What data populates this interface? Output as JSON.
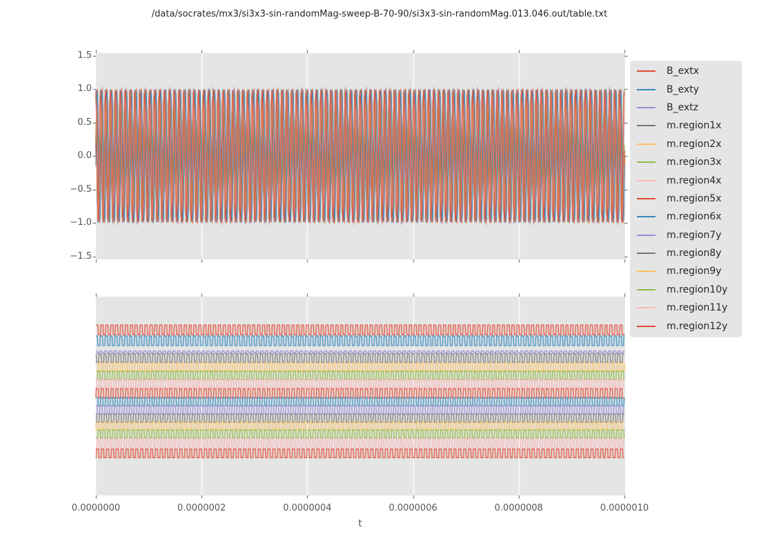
{
  "figure": {
    "title": "/data/socrates/mx3/si3x3-sin-randomMag-sweep-B-70-90/si3x3-sin-randomMag.013.046.out/table.txt",
    "xlabel": "t",
    "colors": {
      "figure_bg": "#ffffff",
      "axes_bg": "#e5e5e5",
      "grid": "#ffffff",
      "tick": "#555555",
      "text": "#262626",
      "tick_label": "#555555"
    }
  },
  "legend": {
    "entries": [
      {
        "label": "B_extx",
        "color": "#e24a33"
      },
      {
        "label": "B_exty",
        "color": "#348abd"
      },
      {
        "label": "B_extz",
        "color": "#988ed5"
      },
      {
        "label": "m.region1x",
        "color": "#777777"
      },
      {
        "label": "m.region2x",
        "color": "#fbc15e"
      },
      {
        "label": "m.region3x",
        "color": "#8eba42"
      },
      {
        "label": "m.region4x",
        "color": "#ffb5b8"
      },
      {
        "label": "m.region5x",
        "color": "#e24a33"
      },
      {
        "label": "m.region6x",
        "color": "#348abd"
      },
      {
        "label": "m.region7y",
        "color": "#988ed5"
      },
      {
        "label": "m.region8y",
        "color": "#777777"
      },
      {
        "label": "m.region9y",
        "color": "#fbc15e"
      },
      {
        "label": "m.region10y",
        "color": "#8eba42"
      },
      {
        "label": "m.region11y",
        "color": "#ffb5b8"
      },
      {
        "label": "m.region12y",
        "color": "#e24a33"
      }
    ]
  },
  "chart_data": [
    {
      "type": "line",
      "subplot": "top",
      "waveform": "sine",
      "x": {
        "label": "t",
        "min": 0,
        "max": 1e-06,
        "ticks": [
          0,
          2e-07,
          4e-07,
          6e-07,
          8e-07,
          1e-06
        ],
        "tick_labels": []
      },
      "y": {
        "min": -1.55,
        "max": 1.55,
        "ticks": [
          1.5,
          1.0,
          0.5,
          0.0,
          -0.5,
          -1.0,
          -1.5
        ],
        "tick_labels": [
          "1.5",
          "1.0",
          "0.5",
          "0.0",
          "−0.5",
          "−1.0",
          "−1.5"
        ]
      },
      "grid": "vertical-only",
      "cycles_visible": 108,
      "series": [
        {
          "name": "B_extx",
          "color": "#e24a33",
          "amplitude": 1.0,
          "phase": 0.0
        },
        {
          "name": "B_exty",
          "color": "#348abd",
          "amplitude": 1.0,
          "phase": 1.75
        },
        {
          "name": "B_extz",
          "color": "#988ed5",
          "amplitude": 0.02,
          "phase": 0.0
        },
        {
          "name": "m.region1x",
          "color": "#777777",
          "amplitude": 0.95,
          "phase": 0.1
        },
        {
          "name": "m.region2x",
          "color": "#fbc15e",
          "amplitude": 0.97,
          "phase": -0.12
        },
        {
          "name": "m.region3x",
          "color": "#8eba42",
          "amplitude": 0.94,
          "phase": 0.18
        },
        {
          "name": "m.region4x",
          "color": "#ffb5b8",
          "amplitude": 0.96,
          "phase": -0.2
        },
        {
          "name": "m.region5x",
          "color": "#e24a33",
          "amplitude": 0.98,
          "phase": 0.08
        },
        {
          "name": "m.region6x",
          "color": "#348abd",
          "amplitude": 0.97,
          "phase": -0.15
        },
        {
          "name": "m.region7y",
          "color": "#988ed5",
          "amplitude": 0.95,
          "phase": 1.6
        },
        {
          "name": "m.region8y",
          "color": "#777777",
          "amplitude": 0.96,
          "phase": 1.9
        },
        {
          "name": "m.region9y",
          "color": "#fbc15e",
          "amplitude": 0.94,
          "phase": 1.68
        },
        {
          "name": "m.region10y",
          "color": "#8eba42",
          "amplitude": 0.97,
          "phase": 1.82
        },
        {
          "name": "m.region11y",
          "color": "#ffb5b8",
          "amplitude": 0.95,
          "phase": 1.58
        },
        {
          "name": "m.region12y",
          "color": "#e24a33",
          "amplitude": 0.98,
          "phase": 1.75
        }
      ]
    },
    {
      "type": "line",
      "subplot": "bottom",
      "waveform": "square",
      "x": {
        "label": "t",
        "min": 0,
        "max": 1e-06,
        "ticks": [
          0,
          2e-07,
          4e-07,
          6e-07,
          8e-07,
          1e-06
        ],
        "tick_labels": [
          "0.0000000",
          "0.0000002",
          "0.0000004",
          "0.0000006",
          "0.0000008",
          "0.0000010"
        ]
      },
      "y": {
        "ticks": [],
        "tick_labels": []
      },
      "grid": "vertical-only",
      "cycles_visible": 108,
      "series": [
        {
          "name": "B_extx",
          "color": "#e24a33",
          "center_frac": 0.167,
          "amp_frac": 0.024,
          "phase": 0.0
        },
        {
          "name": "B_exty",
          "color": "#348abd",
          "center_frac": 0.222,
          "amp_frac": 0.024,
          "phase": 0.85
        },
        {
          "name": "B_extz",
          "color": "#988ed5",
          "center_frac": 0.278,
          "amp_frac": 0.005,
          "phase": 1.7
        },
        {
          "name": "m.region1x",
          "color": "#777777",
          "center_frac": 0.309,
          "amp_frac": 0.021,
          "phase": 2.55
        },
        {
          "name": "m.region2x",
          "color": "#fbc15e",
          "center_frac": 0.354,
          "amp_frac": 0.021,
          "phase": 3.4
        },
        {
          "name": "m.region3x",
          "color": "#8eba42",
          "center_frac": 0.396,
          "amp_frac": 0.021,
          "phase": 4.25
        },
        {
          "name": "m.region4x",
          "color": "#ffb5b8",
          "center_frac": 0.4375,
          "amp_frac": 0.022,
          "phase": 5.1
        },
        {
          "name": "m.region5x",
          "color": "#e24a33",
          "center_frac": 0.486,
          "amp_frac": 0.023,
          "phase": 5.95
        },
        {
          "name": "m.region6x",
          "color": "#348abd",
          "center_frac": 0.528,
          "amp_frac": 0.02,
          "phase": 0.4
        },
        {
          "name": "m.region7y",
          "color": "#988ed5",
          "center_frac": 0.569,
          "amp_frac": 0.02,
          "phase": 1.25
        },
        {
          "name": "m.region8y",
          "color": "#777777",
          "center_frac": 0.611,
          "amp_frac": 0.02,
          "phase": 2.1
        },
        {
          "name": "m.region9y",
          "color": "#fbc15e",
          "center_frac": 0.649,
          "amp_frac": 0.02,
          "phase": 2.95
        },
        {
          "name": "m.region10y",
          "color": "#8eba42",
          "center_frac": 0.691,
          "amp_frac": 0.02,
          "phase": 3.8
        },
        {
          "name": "m.region11y",
          "color": "#ffb5b8",
          "center_frac": 0.736,
          "amp_frac": 0.023,
          "phase": 4.65
        },
        {
          "name": "m.region12y",
          "color": "#e24a33",
          "center_frac": 0.788,
          "amp_frac": 0.022,
          "phase": 5.5
        }
      ]
    }
  ]
}
